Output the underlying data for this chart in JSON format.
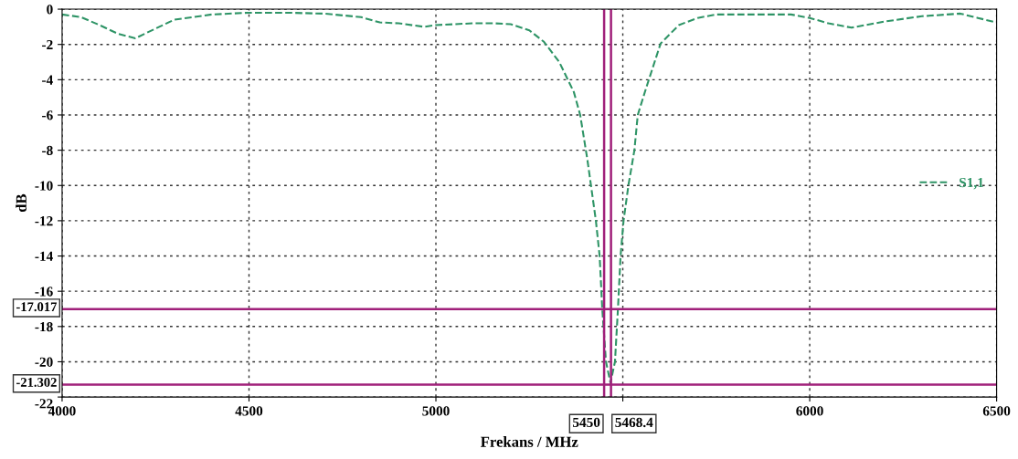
{
  "chart_data": {
    "type": "line",
    "xlabel": "Frekans / MHz",
    "ylabel": "dB",
    "xlim": [
      4000,
      6500
    ],
    "xticks": [
      4000,
      4500,
      5000,
      {
        "value": 5500,
        "label": null
      },
      6000,
      6500
    ],
    "ylim": [
      -22,
      0
    ],
    "yticks": [
      -22,
      -20,
      -18,
      -16,
      -14,
      -12,
      -10,
      -8,
      -6,
      -4,
      -2,
      0
    ],
    "grid": true,
    "legend": "right",
    "line_style": "dashed",
    "marker": "none",
    "series": [
      {
        "name": "S1,1",
        "color": "#2e9466",
        "x": [
          4000,
          4050,
          4100,
          4150,
          4196,
          4250,
          4300,
          4400,
          4500,
          4600,
          4700,
          4800,
          4850,
          4900,
          4968,
          5000,
          5100,
          5154,
          5200,
          5250,
          5289,
          5330,
          5369,
          5386,
          5405,
          5428,
          5438,
          5445,
          5455,
          5467,
          5479,
          5487,
          5494,
          5502,
          5515,
          5531,
          5540,
          5562,
          5601,
          5650,
          5700,
          5750,
          5850,
          5950,
          6000,
          6050,
          6112,
          6200,
          6300,
          6403,
          6450,
          6500
        ],
        "values": [
          -0.3,
          -0.45,
          -0.9,
          -1.4,
          -1.65,
          -1.1,
          -0.6,
          -0.3,
          -0.2,
          -0.2,
          -0.25,
          -0.45,
          -0.75,
          -0.8,
          -1.0,
          -0.9,
          -0.8,
          -0.8,
          -0.85,
          -1.2,
          -1.85,
          -3.0,
          -4.7,
          -6.0,
          -8.5,
          -12.0,
          -14.0,
          -17.0,
          -20.0,
          -21.2,
          -20.0,
          -17.0,
          -14.0,
          -12.0,
          -10.0,
          -8.0,
          -6.0,
          -4.5,
          -1.95,
          -0.9,
          -0.5,
          -0.3,
          -0.3,
          -0.3,
          -0.5,
          -0.8,
          -1.05,
          -0.7,
          -0.4,
          -0.25,
          -0.5,
          -0.75
        ]
      }
    ],
    "ref_lines": [
      {
        "axis": "x",
        "value": 5450,
        "label": "5450",
        "color": "#a0207a"
      },
      {
        "axis": "x",
        "value": 5468.4,
        "label": "5468.4",
        "color": "#a0207a"
      },
      {
        "axis": "y",
        "value": -17.017,
        "label": "-17.017",
        "color": "#a0207a"
      },
      {
        "axis": "y",
        "value": -21.302,
        "label": "-21.302",
        "color": "#a0207a"
      }
    ]
  }
}
